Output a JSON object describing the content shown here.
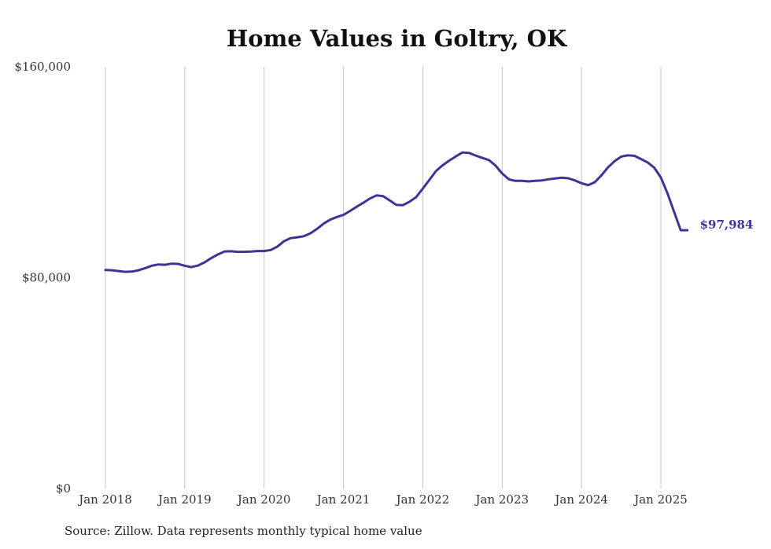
{
  "chart_data": {
    "type": "line",
    "title": "Home Values in Goltry, OK",
    "ylim": [
      0,
      160000
    ],
    "y_ticks": [
      {
        "value": 0,
        "label": "$0"
      },
      {
        "value": 80000,
        "label": "$80,000"
      },
      {
        "value": 160000,
        "label": "$160,000"
      }
    ],
    "x_ticks": [
      {
        "value": 2018.0,
        "label": "Jan 2018"
      },
      {
        "value": 2019.0,
        "label": "Jan 2019"
      },
      {
        "value": 2020.0,
        "label": "Jan 2020"
      },
      {
        "value": 2021.0,
        "label": "Jan 2021"
      },
      {
        "value": 2022.0,
        "label": "Jan 2022"
      },
      {
        "value": 2023.0,
        "label": "Jan 2023"
      },
      {
        "value": 2024.0,
        "label": "Jan 2024"
      },
      {
        "value": 2025.0,
        "label": "Jan 2025"
      }
    ],
    "grid": "vertical",
    "xlim": [
      2017.9,
      2025.5
    ],
    "series": [
      {
        "color": "#3b3597",
        "end_label": "$97,984",
        "x": [
          2018.0,
          2018.083,
          2018.167,
          2018.25,
          2018.333,
          2018.417,
          2018.5,
          2018.583,
          2018.667,
          2018.75,
          2018.833,
          2018.917,
          2019.0,
          2019.083,
          2019.167,
          2019.25,
          2019.333,
          2019.417,
          2019.5,
          2019.583,
          2019.667,
          2019.75,
          2019.833,
          2019.917,
          2020.0,
          2020.083,
          2020.167,
          2020.25,
          2020.333,
          2020.417,
          2020.5,
          2020.583,
          2020.667,
          2020.75,
          2020.833,
          2020.917,
          2021.0,
          2021.083,
          2021.167,
          2021.25,
          2021.333,
          2021.417,
          2021.5,
          2021.583,
          2021.667,
          2021.75,
          2021.833,
          2021.917,
          2022.0,
          2022.083,
          2022.167,
          2022.25,
          2022.333,
          2022.417,
          2022.5,
          2022.583,
          2022.667,
          2022.75,
          2022.833,
          2022.917,
          2023.0,
          2023.083,
          2023.167,
          2023.25,
          2023.333,
          2023.417,
          2023.5,
          2023.583,
          2023.667,
          2023.75,
          2023.833,
          2023.917,
          2024.0,
          2024.083,
          2024.167,
          2024.25,
          2024.333,
          2024.417,
          2024.5,
          2024.583,
          2024.667,
          2024.75,
          2024.833,
          2024.917,
          2025.0,
          2025.083,
          2025.167,
          2025.25,
          2025.333
        ],
        "values": [
          82900,
          82800,
          82500,
          82200,
          82300,
          82800,
          83600,
          84500,
          85000,
          84900,
          85300,
          85200,
          84500,
          84000,
          84600,
          85800,
          87400,
          88800,
          89900,
          90000,
          89800,
          89800,
          89900,
          90100,
          90100,
          90500,
          91800,
          93800,
          95000,
          95300,
          95700,
          96800,
          98500,
          100500,
          102000,
          103000,
          103800,
          105300,
          106900,
          108400,
          110000,
          111200,
          110900,
          109300,
          107600,
          107500,
          108800,
          110600,
          113800,
          117100,
          120500,
          122600,
          124400,
          126000,
          127500,
          127300,
          126300,
          125400,
          124600,
          122500,
          119500,
          117300,
          116700,
          116700,
          116500,
          116700,
          116900,
          117300,
          117600,
          117900,
          117700,
          116900,
          115800,
          115100,
          116200,
          118800,
          121800,
          124200,
          125900,
          126400,
          126200,
          125000,
          123700,
          121700,
          118000,
          112000,
          105000,
          98000,
          97984
        ]
      }
    ]
  },
  "source_note": "Source: Zillow. Data represents monthly typical home value"
}
